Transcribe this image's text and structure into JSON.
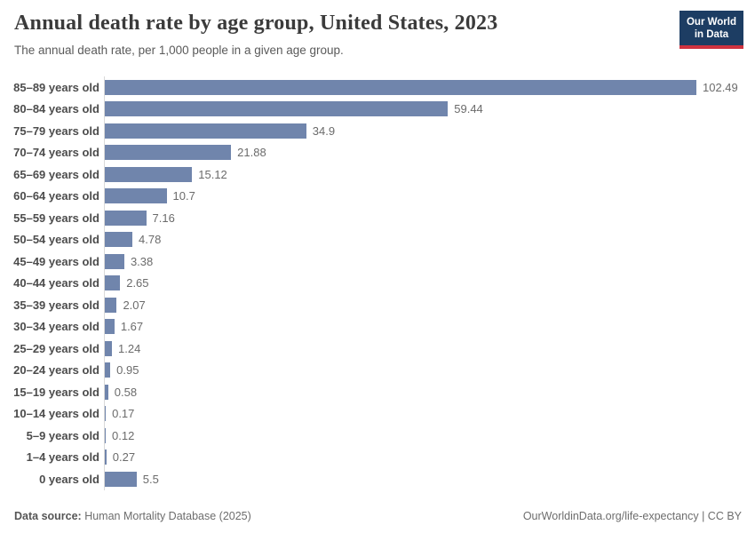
{
  "header": {
    "title": "Annual death rate by age group, United States, 2023",
    "subtitle": "The annual death rate, per 1,000 people in a given age group."
  },
  "logo": {
    "line1": "Our World",
    "line2": "in Data",
    "navy": "#1d3d63",
    "red": "#cf323f"
  },
  "chart_data": {
    "type": "bar",
    "orientation": "horizontal",
    "title": "Annual death rate by age group, United States, 2023",
    "subtitle": "The annual death rate, per 1,000 people in a given age group.",
    "categories": [
      "85–89 years old",
      "80–84 years old",
      "75–79 years old",
      "70–74 years old",
      "65–69 years old",
      "60–64 years old",
      "55–59 years old",
      "50–54 years old",
      "45–49 years old",
      "40–44 years old",
      "35–39 years old",
      "30–34 years old",
      "25–29 years old",
      "20–24 years old",
      "15–19 years old",
      "10–14 years old",
      "5–9 years old",
      "1–4 years old",
      "0 years old"
    ],
    "values": [
      102.49,
      59.44,
      34.9,
      21.88,
      15.12,
      10.7,
      7.16,
      4.78,
      3.38,
      2.65,
      2.07,
      1.67,
      1.24,
      0.95,
      0.58,
      0.17,
      0.12,
      0.27,
      5.5
    ],
    "value_labels": [
      "102.49",
      "59.44",
      "34.9",
      "21.88",
      "15.12",
      "10.7",
      "7.16",
      "4.78",
      "3.38",
      "2.65",
      "2.07",
      "1.67",
      "1.24",
      "0.95",
      "0.58",
      "0.17",
      "0.12",
      "0.27",
      "5.5"
    ],
    "xlim": [
      0,
      102.49
    ],
    "bar_color": "#7085ac",
    "axis_color": "#d9d9d9",
    "grid": false,
    "legend": "none",
    "xlabel": "",
    "ylabel": ""
  },
  "footer": {
    "source_label": "Data source:",
    "source_text": " Human Mortality Database (2025)",
    "right_text": "OurWorldinData.org/life-expectancy | CC BY"
  }
}
